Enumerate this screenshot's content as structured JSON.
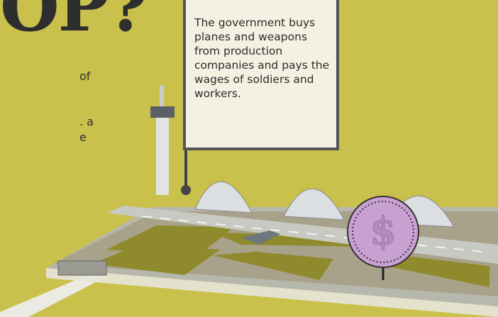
{
  "heading": "OP?",
  "body_fragments": [
    "of",
    ". a",
    "e"
  ],
  "callout": "The government buys planes and weapons from production companies and pays the wages of soldiers and workers.",
  "coin_symbol": "$"
}
